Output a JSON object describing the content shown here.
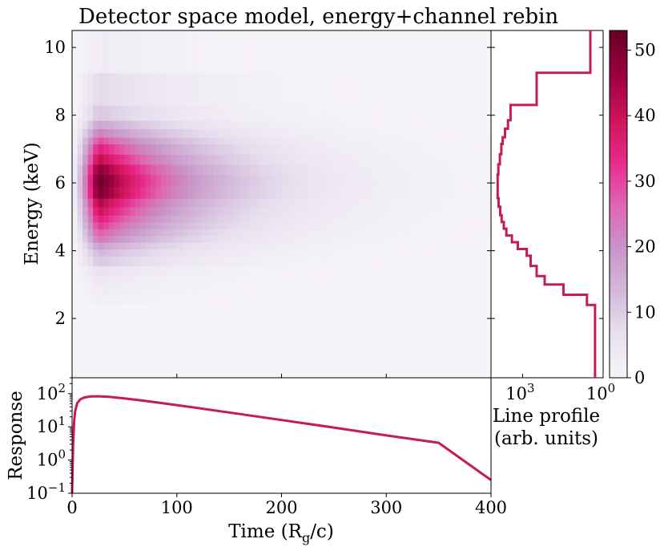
{
  "chart_data": [
    {
      "type": "heatmap",
      "title": "Detector space model, energy+channel rebin",
      "xlabel": "",
      "ylabel": "Energy (keV)",
      "xlim": [
        0,
        400
      ],
      "ylim": [
        0.25,
        10.5
      ],
      "yticks": [
        2,
        4,
        6,
        8,
        10
      ],
      "color_scale": {
        "min": 0,
        "max": 53,
        "ticks": [
          0,
          10,
          20,
          30,
          40,
          50
        ],
        "colormap": [
          "#f7f4f9",
          "#e7e1ef",
          "#d4b9da",
          "#c994c7",
          "#df65b0",
          "#e7298a",
          "#ce1256",
          "#980043",
          "#67001f"
        ]
      },
      "energy_bin_edges": [
        0.25,
        2.4,
        2.7,
        3.0,
        3.25,
        3.55,
        3.85,
        4.05,
        4.25,
        4.45,
        4.65,
        4.85,
        5.05,
        5.3,
        5.55,
        5.9,
        6.25,
        6.55,
        6.85,
        7.15,
        7.35,
        7.6,
        7.85,
        8.3,
        9.25,
        10.5
      ],
      "bin_peak_counts": [
        0,
        2,
        3,
        4,
        6,
        11,
        14,
        18,
        24,
        28,
        32,
        36,
        40,
        44,
        51,
        53,
        49,
        42,
        36,
        30,
        23,
        17,
        11,
        8,
        3
      ],
      "time_profile": {
        "rise_to_peak": 25,
        "decay_scale": 90
      }
    },
    {
      "type": "line",
      "title": "",
      "xlabel": "Line profile\n(arb. units)",
      "ylabel": "",
      "x_scale": "log",
      "xlim": [
        1,
        15000
      ],
      "x_axis_inverted": true,
      "xticks": [
        {
          "value": 1000,
          "label": "10",
          "exp": "3"
        },
        {
          "value": 1,
          "label": "10",
          "exp": "0"
        }
      ],
      "ylim": [
        0.25,
        10.5
      ],
      "energy_bin_edges": [
        0.25,
        2.4,
        2.7,
        3.0,
        3.25,
        3.55,
        3.85,
        4.05,
        4.25,
        4.45,
        4.65,
        4.85,
        5.05,
        5.3,
        5.55,
        5.9,
        6.25,
        6.55,
        6.85,
        7.15,
        7.35,
        7.6,
        7.85,
        8.3,
        9.25,
        10.5
      ],
      "profile_values": [
        2,
        4,
        30,
        150,
        300,
        500,
        700,
        1500,
        2500,
        4000,
        5000,
        6000,
        6800,
        7800,
        8500,
        8500,
        8000,
        7000,
        6200,
        5500,
        4500,
        3500,
        2800,
        300,
        3
      ]
    },
    {
      "type": "line",
      "title": "",
      "xlabel": "Time (R<sub>g</sub>/c)",
      "xlabel_text": "Time (R",
      "xlabel_sub": "g",
      "xlabel_tail": "/c)",
      "ylabel": "Response",
      "xlim": [
        0,
        400
      ],
      "xticks": [
        0,
        100,
        200,
        300,
        400
      ],
      "y_scale": "log",
      "ylim": [
        0.1,
        300
      ],
      "yticks": [
        {
          "value": 100,
          "label": "10",
          "exp": "2"
        },
        {
          "value": 10,
          "label": "10",
          "exp": "1"
        },
        {
          "value": 1,
          "label": "10",
          "exp": "0"
        },
        {
          "value": 0.1,
          "label": "10",
          "exp": "−1"
        }
      ],
      "series": [
        {
          "color": "#c51b58",
          "x": [
            0,
            1,
            2,
            3,
            5,
            8,
            12,
            18,
            25,
            35,
            50,
            70,
            100,
            150,
            200,
            250,
            300,
            350,
            400
          ],
          "y": [
            0.1,
            3,
            15,
            30,
            52,
            68,
            77,
            82,
            83,
            80,
            72,
            60,
            45,
            27,
            16,
            9.5,
            5.5,
            3.3,
            0.25
          ]
        }
      ]
    }
  ]
}
